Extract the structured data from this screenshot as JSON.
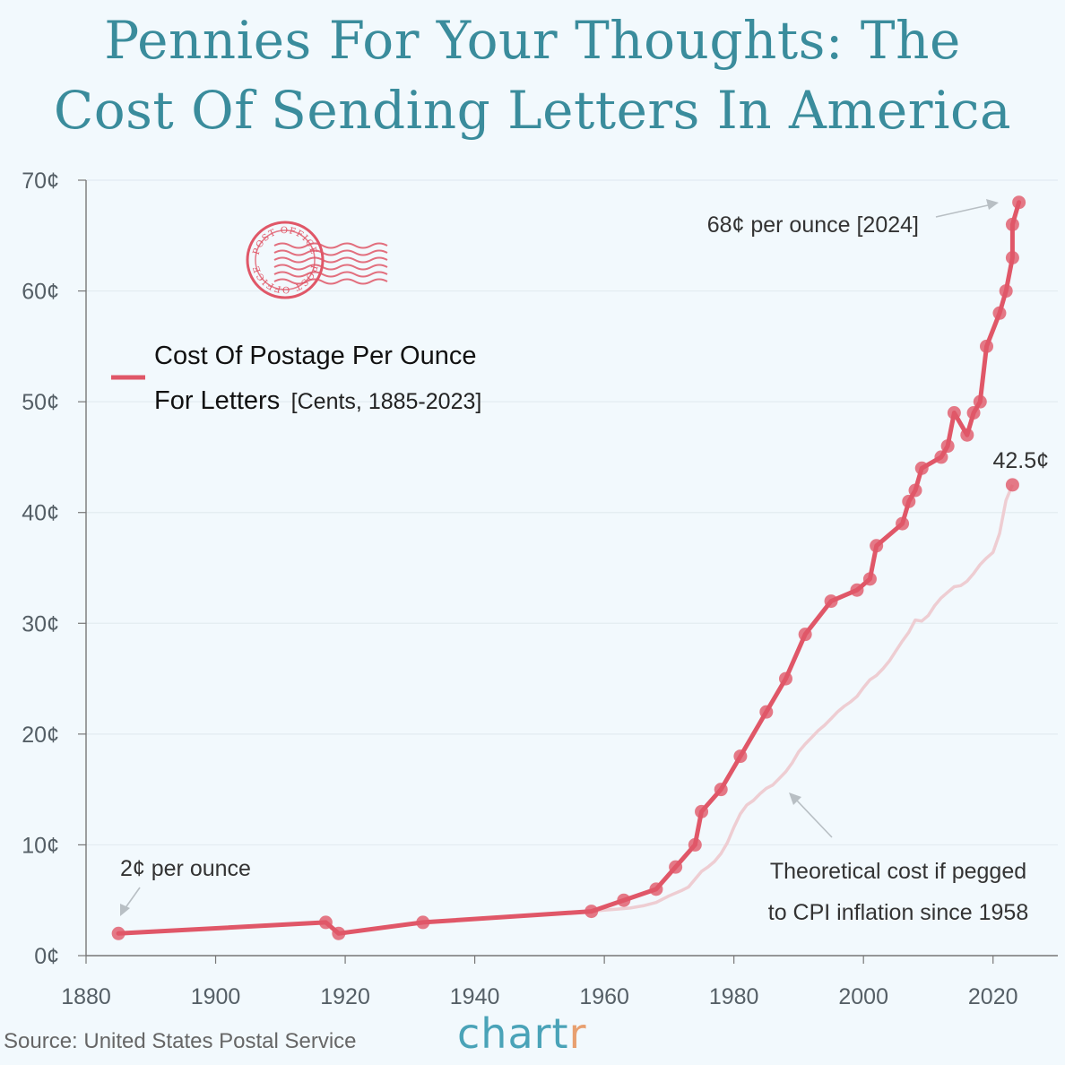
{
  "title": {
    "line1": "Pennies For Your Thoughts: The",
    "line2": "Cost Of Sending Letters In America"
  },
  "source": "Source: United States Postal Service",
  "brand": {
    "main": "chart",
    "accent": "r"
  },
  "colors": {
    "background": "#f2f9fd",
    "title": "#3a8c9c",
    "series_main": "#e05768",
    "series_cpi": "#eecdd2",
    "brand": "#4aa3b8",
    "brand_accent": "#e8a070",
    "stamp": "#e05768"
  },
  "stamp": {
    "icon": "postmark-stamp",
    "text_top": "POST OFFICE",
    "text_bottom": "POST OFFICE"
  },
  "legend": {
    "label_main_1": "Cost Of Postage Per Ounce",
    "label_main_2": "For Letters",
    "label_sub": "[Cents, 1885-2023]"
  },
  "annotations": {
    "start": "2¢ per ounce",
    "end": "68¢ per ounce [2024]",
    "cpi_end": "42.5¢",
    "cpi_line1": "Theoretical cost if pegged",
    "cpi_line2": "to CPI inflation since 1958"
  },
  "chart_data": {
    "type": "line",
    "title": "Pennies For Your Thoughts: The Cost Of Sending Letters In America",
    "xlabel": "",
    "ylabel": "",
    "xlim": [
      1880,
      2030
    ],
    "ylim": [
      0,
      70
    ],
    "x_ticks": [
      1880,
      1900,
      1920,
      1940,
      1960,
      1980,
      2000,
      2020
    ],
    "y_ticks": [
      0,
      10,
      20,
      30,
      40,
      50,
      60,
      70
    ],
    "y_tick_labels": [
      "0¢",
      "10¢",
      "20¢",
      "30¢",
      "40¢",
      "50¢",
      "60¢",
      "70¢"
    ],
    "grid": "horizontal",
    "series": [
      {
        "name": "Cost Of Postage Per Ounce For Letters",
        "style": "line-with-markers",
        "points": [
          [
            1885,
            2
          ],
          [
            1917,
            3
          ],
          [
            1919,
            2
          ],
          [
            1932,
            3
          ],
          [
            1958,
            4
          ],
          [
            1963,
            5
          ],
          [
            1968,
            6
          ],
          [
            1971,
            8
          ],
          [
            1974,
            10
          ],
          [
            1975,
            13
          ],
          [
            1978,
            15
          ],
          [
            1981,
            18
          ],
          [
            1985,
            22
          ],
          [
            1988,
            25
          ],
          [
            1991,
            29
          ],
          [
            1995,
            32
          ],
          [
            1999,
            33
          ],
          [
            2001,
            34
          ],
          [
            2002,
            37
          ],
          [
            2006,
            39
          ],
          [
            2007,
            41
          ],
          [
            2008,
            42
          ],
          [
            2009,
            44
          ],
          [
            2012,
            45
          ],
          [
            2013,
            46
          ],
          [
            2014,
            49
          ],
          [
            2016,
            47
          ],
          [
            2017,
            49
          ],
          [
            2018,
            50
          ],
          [
            2019,
            55
          ],
          [
            2021,
            58
          ],
          [
            2022,
            60
          ],
          [
            2023,
            63
          ],
          [
            2023,
            66
          ],
          [
            2024,
            68
          ]
        ]
      },
      {
        "name": "Theoretical cost if pegged to CPI inflation since 1958",
        "style": "line",
        "points": [
          [
            1958,
            4
          ],
          [
            1960,
            4.1
          ],
          [
            1962,
            4.2
          ],
          [
            1964,
            4.3
          ],
          [
            1966,
            4.5
          ],
          [
            1968,
            4.8
          ],
          [
            1970,
            5.4
          ],
          [
            1972,
            5.9
          ],
          [
            1973,
            6.2
          ],
          [
            1974,
            6.9
          ],
          [
            1975,
            7.6
          ],
          [
            1976,
            8.0
          ],
          [
            1977,
            8.5
          ],
          [
            1978,
            9.2
          ],
          [
            1979,
            10.2
          ],
          [
            1980,
            11.6
          ],
          [
            1981,
            12.8
          ],
          [
            1982,
            13.6
          ],
          [
            1983,
            14.0
          ],
          [
            1984,
            14.6
          ],
          [
            1985,
            15.1
          ],
          [
            1986,
            15.4
          ],
          [
            1987,
            16.0
          ],
          [
            1988,
            16.6
          ],
          [
            1989,
            17.4
          ],
          [
            1990,
            18.4
          ],
          [
            1991,
            19.1
          ],
          [
            1992,
            19.7
          ],
          [
            1993,
            20.3
          ],
          [
            1994,
            20.8
          ],
          [
            1995,
            21.4
          ],
          [
            1996,
            22.0
          ],
          [
            1997,
            22.5
          ],
          [
            1998,
            22.9
          ],
          [
            1999,
            23.4
          ],
          [
            2000,
            24.2
          ],
          [
            2001,
            24.9
          ],
          [
            2002,
            25.3
          ],
          [
            2003,
            25.9
          ],
          [
            2004,
            26.6
          ],
          [
            2005,
            27.5
          ],
          [
            2006,
            28.4
          ],
          [
            2007,
            29.2
          ],
          [
            2008,
            30.3
          ],
          [
            2009,
            30.2
          ],
          [
            2010,
            30.7
          ],
          [
            2011,
            31.6
          ],
          [
            2012,
            32.3
          ],
          [
            2013,
            32.8
          ],
          [
            2014,
            33.3
          ],
          [
            2015,
            33.4
          ],
          [
            2016,
            33.8
          ],
          [
            2017,
            34.5
          ],
          [
            2018,
            35.3
          ],
          [
            2019,
            35.9
          ],
          [
            2020,
            36.4
          ],
          [
            2021,
            38.1
          ],
          [
            2022,
            41.1
          ],
          [
            2023,
            42.5
          ]
        ],
        "end_marker": [
          2023,
          42.5
        ]
      }
    ]
  }
}
